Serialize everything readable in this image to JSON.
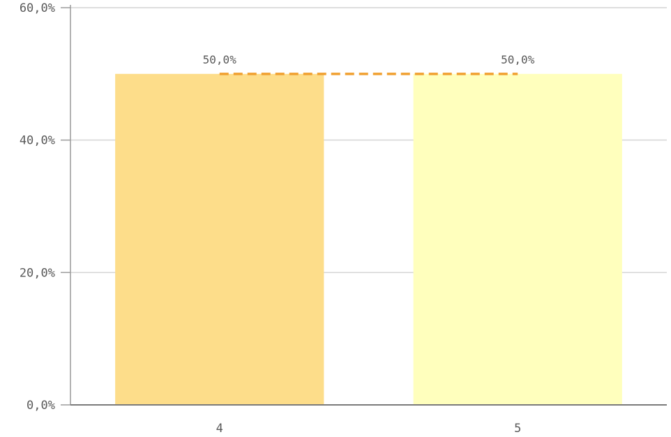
{
  "chart_data": {
    "type": "bar",
    "categories": [
      "4",
      "5"
    ],
    "values": [
      50.0,
      50.0
    ],
    "value_labels": [
      "50,0%",
      "50,0%"
    ],
    "ylim": [
      0,
      60
    ],
    "yticks": [
      0,
      20,
      40,
      60
    ],
    "ytick_labels": [
      "0,0%",
      "20,0%",
      "40,0%",
      "60,0%"
    ],
    "grid": true,
    "bar_colors": [
      "#fddd8a",
      "#ffffbd"
    ],
    "connector_line": {
      "style": "dashed",
      "color": "#f0a030",
      "from_value": 50.0,
      "to_value": 50.0
    },
    "axis_color": "#9a9a9a",
    "grid_color": "#d4d4d4",
    "label_color": "#595959"
  }
}
